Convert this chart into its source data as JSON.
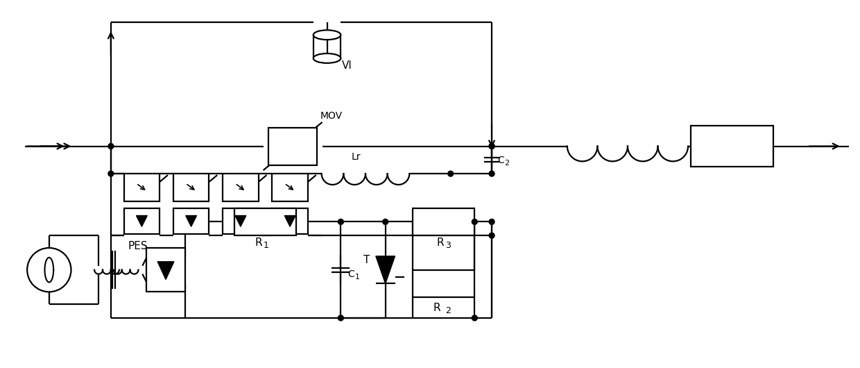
{
  "bg_color": "#ffffff",
  "line_color": "#000000",
  "lw": 1.6,
  "fig_width": 12.4,
  "fig_height": 5.3,
  "labels": {
    "VI": "VI",
    "MOV": "MOV",
    "PES": "PES",
    "Lr": "Lr",
    "C2": "C",
    "C2_sub": "2",
    "C1": "C",
    "C1_sub": "1",
    "R1": "R",
    "R1_sub": "1",
    "R2": "R",
    "R2_sub": "2",
    "R3": "R",
    "R3_sub": "3",
    "T": "T"
  }
}
